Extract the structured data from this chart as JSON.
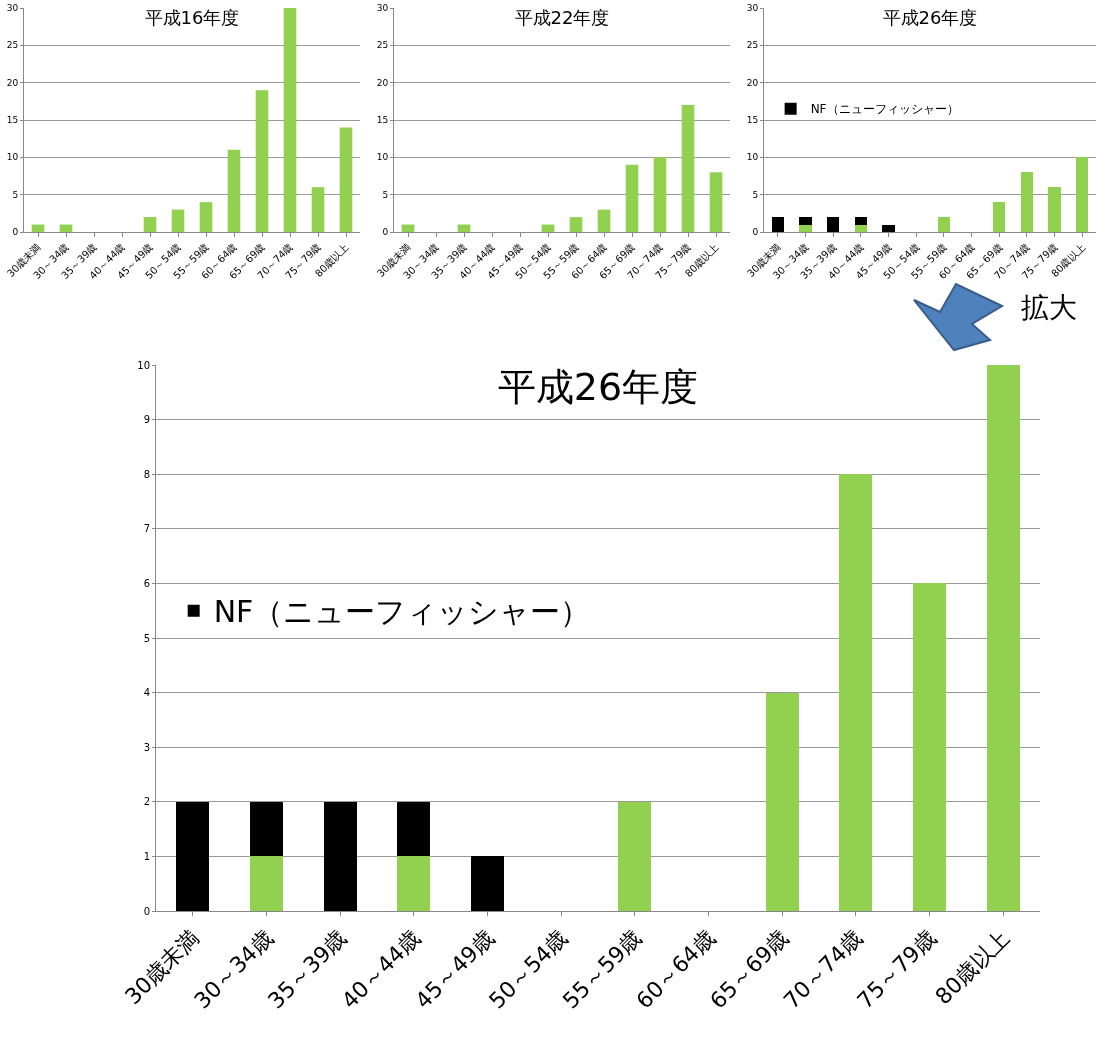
{
  "chart_data": [
    {
      "type": "bar",
      "title": "平成16年度",
      "categories": [
        "30歳未満",
        "30～34歳",
        "35～39歳",
        "40～44歳",
        "45～49歳",
        "50～54歳",
        "55～59歳",
        "60～64歳",
        "65～69歳",
        "70～74歳",
        "75～79歳",
        "80歳以上"
      ],
      "series": [
        {
          "color": "#92d050",
          "values": [
            1,
            1,
            0,
            0,
            2,
            3,
            4,
            11,
            19,
            30,
            6,
            14
          ]
        }
      ],
      "ylim": [
        0,
        30
      ],
      "yticks": [
        0,
        5,
        10,
        15,
        20,
        25,
        30
      ],
      "grid": "y",
      "legend": false
    },
    {
      "type": "bar",
      "title": "平成22年度",
      "categories": [
        "30歳未満",
        "30～34歳",
        "35～39歳",
        "40～44歳",
        "45～49歳",
        "50～54歳",
        "55～59歳",
        "60～64歳",
        "65～69歳",
        "70～74歳",
        "75～79歳",
        "80歳以上"
      ],
      "series": [
        {
          "color": "#92d050",
          "values": [
            1,
            0,
            1,
            0,
            0,
            1,
            2,
            3,
            9,
            10,
            17,
            8
          ]
        }
      ],
      "ylim": [
        0,
        30
      ],
      "yticks": [
        0,
        5,
        10,
        15,
        20,
        25,
        30
      ],
      "grid": "y",
      "legend": false
    },
    {
      "type": "bar",
      "title": "平成26年度",
      "stacked": true,
      "categories": [
        "30歳未満",
        "30～34歳",
        "35～39歳",
        "40～44歳",
        "45～49歳",
        "50～54歳",
        "55～59歳",
        "60～64歳",
        "65～69歳",
        "70～74歳",
        "75～79歳",
        "80歳以上"
      ],
      "series": [
        {
          "color": "#92d050",
          "values": [
            0,
            1,
            0,
            1,
            0,
            0,
            2,
            0,
            4,
            8,
            6,
            10
          ]
        },
        {
          "name": "NF（ニューフィッシャー）",
          "color": "#000000",
          "values": [
            2,
            1,
            2,
            1,
            1,
            0,
            0,
            0,
            0,
            0,
            0,
            0
          ]
        }
      ],
      "ylim": [
        0,
        30
      ],
      "yticks": [
        0,
        5,
        10,
        15,
        20,
        25,
        30
      ],
      "grid": "y",
      "legend": "left"
    },
    {
      "type": "bar",
      "title": "平成26年度",
      "stacked": true,
      "categories": [
        "30歳未満",
        "30～34歳",
        "35～39歳",
        "40～44歳",
        "45～49歳",
        "50～54歳",
        "55～59歳",
        "60～64歳",
        "65～69歳",
        "70～74歳",
        "75～79歳",
        "80歳以上"
      ],
      "series": [
        {
          "color": "#92d050",
          "values": [
            0,
            1,
            0,
            1,
            0,
            0,
            2,
            0,
            4,
            8,
            6,
            10
          ]
        },
        {
          "name": "NF（ニューフィッシャー）",
          "color": "#000000",
          "values": [
            2,
            1,
            2,
            1,
            1,
            0,
            0,
            0,
            0,
            0,
            0,
            0
          ]
        }
      ],
      "ylim": [
        0,
        10
      ],
      "yticks": [
        0,
        1,
        2,
        3,
        4,
        5,
        6,
        7,
        8,
        9,
        10
      ],
      "grid": "y",
      "legend": "left",
      "annotations": [
        "拡大"
      ]
    }
  ]
}
